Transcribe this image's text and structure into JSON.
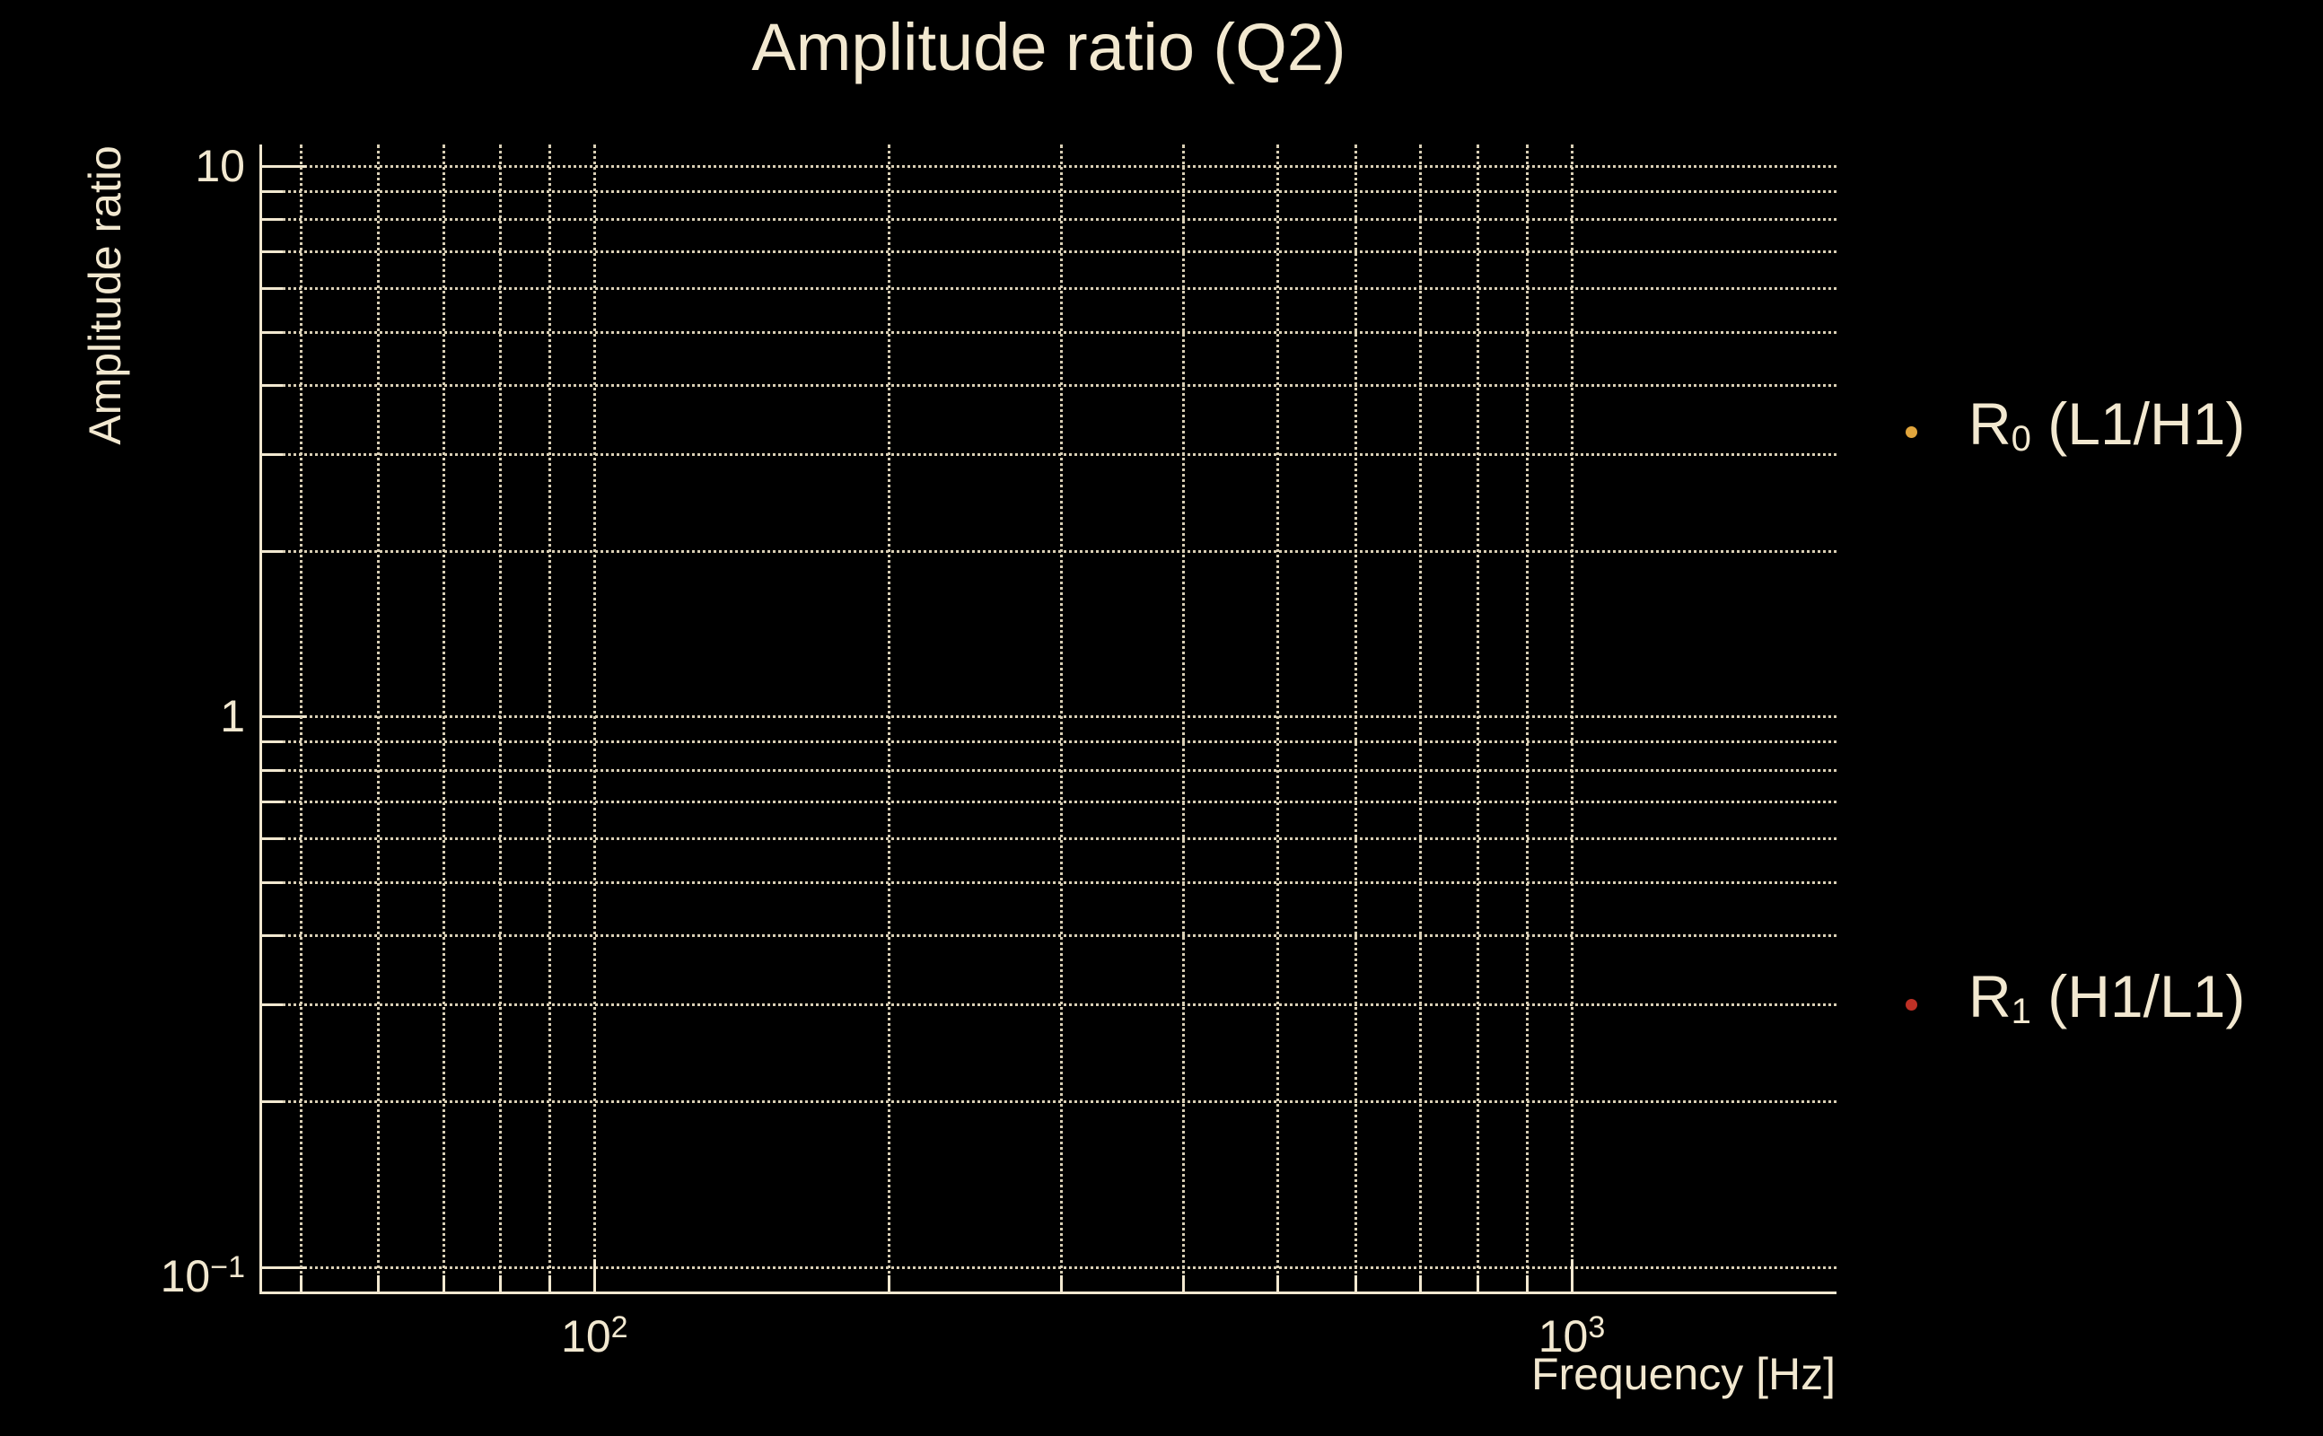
{
  "palette": {
    "background": "#000000",
    "foreground": "#f2e8d0",
    "grid": "#d9cfb5"
  },
  "chart_data": {
    "type": "scatter",
    "title": "Amplitude ratio (Q2)",
    "xlabel": "Frequency [Hz]",
    "ylabel": "Amplitude ratio",
    "xscale": "log",
    "yscale": "log",
    "xlim": [
      45.6,
      1866
    ],
    "ylim": [
      0.0903,
      10.94
    ],
    "grid": "major+minor dotted",
    "legend_position": "right-outside",
    "x_major_ticks": [
      100,
      1000
    ],
    "x_major_labels": [
      {
        "base": "10",
        "exp": "2"
      },
      {
        "base": "10",
        "exp": "3"
      }
    ],
    "x_minor_ticks": [
      50,
      60,
      70,
      80,
      90,
      200,
      300,
      400,
      500,
      600,
      700,
      800,
      900
    ],
    "y_major_ticks": [
      10,
      1,
      0.1
    ],
    "y_major_labels": [
      {
        "base": "10",
        "exp": ""
      },
      {
        "base": "1",
        "exp": ""
      },
      {
        "base": "10",
        "exp": "−1"
      }
    ],
    "y_minor_ticks": [
      9,
      8,
      7,
      6,
      5,
      4,
      3,
      2,
      0.9,
      0.8,
      0.7,
      0.6,
      0.5,
      0.4,
      0.3,
      0.2
    ],
    "series": [
      {
        "label_main": "R",
        "label_sub": "0",
        "label_rest": " (L1/H1)",
        "marker": "dot",
        "color": "#e1a53c",
        "points": []
      },
      {
        "label_main": "R",
        "label_sub": "1",
        "label_rest": " (H1/L1)",
        "marker": "dot",
        "color": "#be3025",
        "points": []
      }
    ]
  }
}
